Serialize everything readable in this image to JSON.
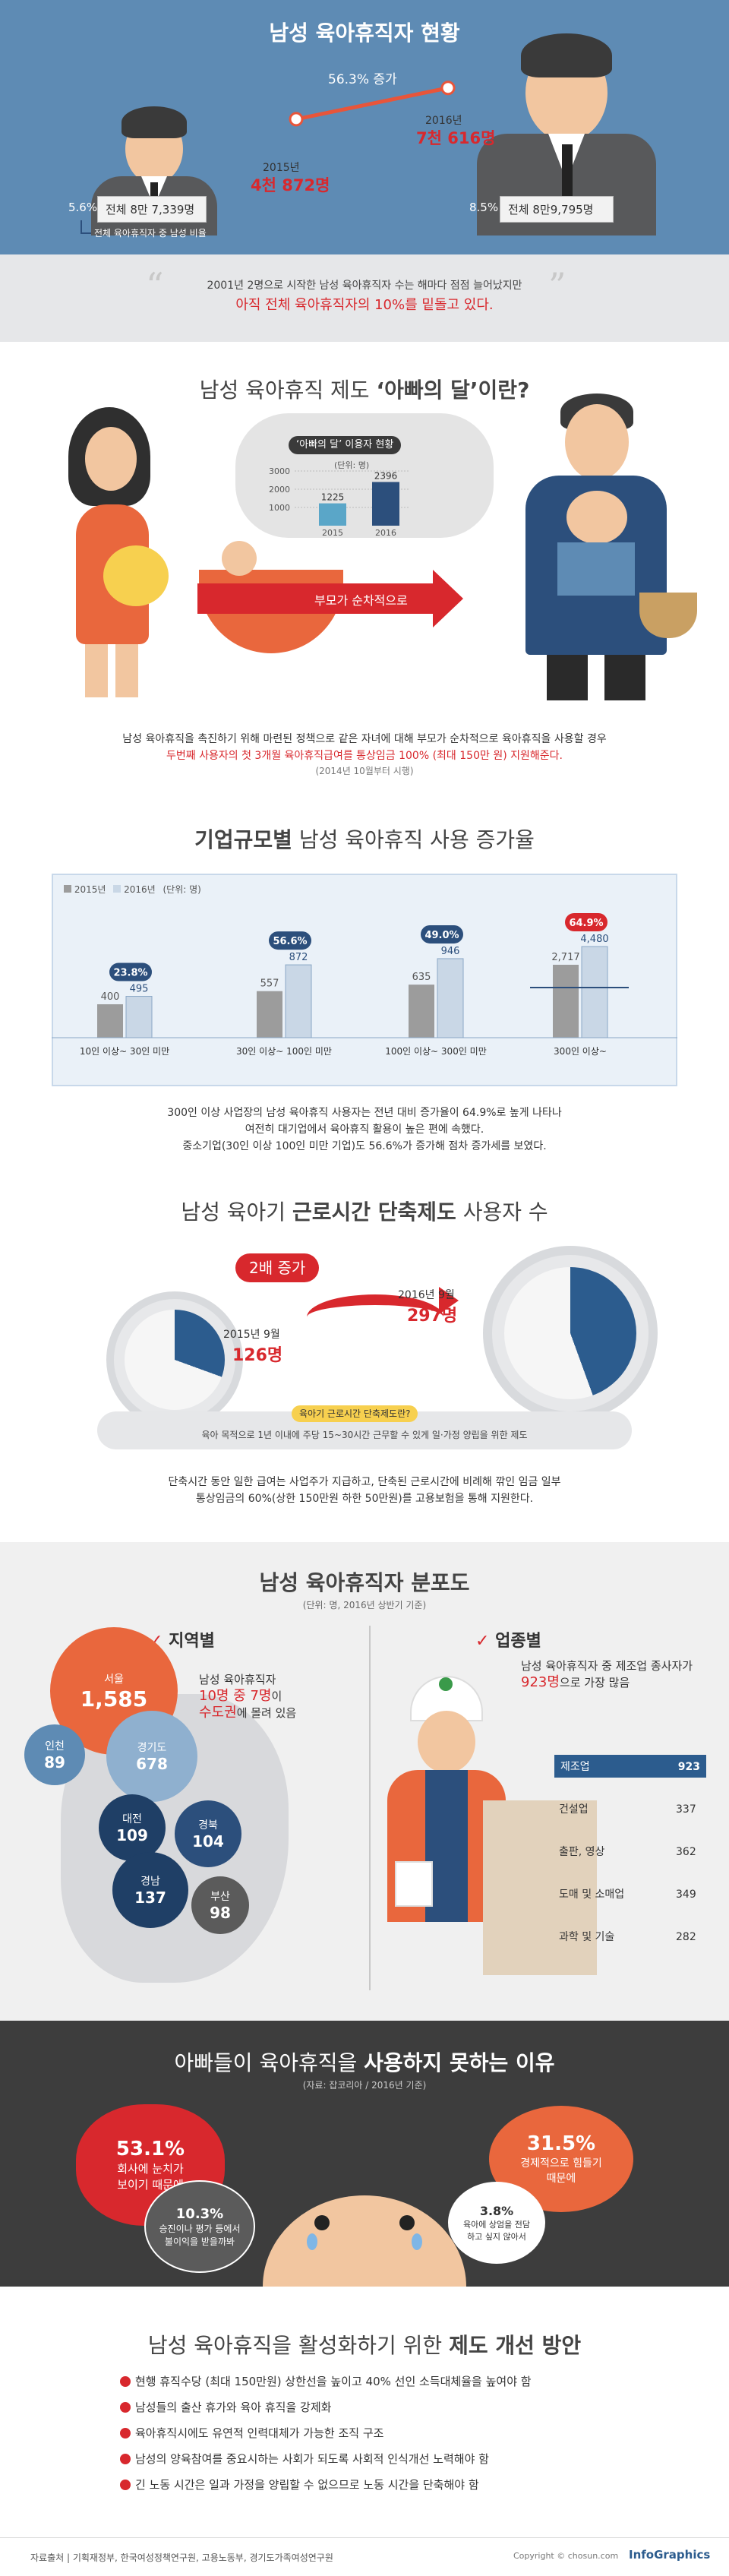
{
  "s1": {
    "title": "남성 육아휴직자 현황",
    "increase_label": "56.3% 증가",
    "y2015_label": "2015년",
    "y2015_value": "4천 872명",
    "y2016_label": "2016년",
    "y2016_value": "7천 616명",
    "left_pct": "5.6%",
    "left_total": "전체 8만 7,339명",
    "right_pct": "8.5%",
    "right_total": "전체 8만9,795명",
    "legend": "전체 육아휴직자 중 남성 비율",
    "quote_line1": "2001년 2명으로 시작한 남성 육아휴직자 수는 해마다 점점 늘어났지만",
    "quote_line2": "아직 전체 육아휴직자의 10%를 밑돌고 있다."
  },
  "s2": {
    "title_prefix": "남성 육아휴직 제도 ",
    "title_highlight": "‘아빠의 달’이란?",
    "chart_title": "‘아빠의 달’ 이용자 현황",
    "unit": "(단위: 명)",
    "arrow_label": "부모가 순차적으로",
    "desc_line1": "남성 육아휴직을 촉진하기 위해 마련된 정책으로 같은 자녀에 대해 부모가 순차적으로 육아휴직을 사용할 경우",
    "desc_line2": "두번째 사용자의 첫 3개월 육아휴직급여를 통상임금 100% (최대 150만 원) 지원해준다.",
    "desc_note": "(2014년 10월부터 시행)"
  },
  "s3": {
    "title_bold": "기업규모별",
    "title_rest": " 남성 육아휴직 사용 증가율",
    "legend_2015": "2015년",
    "legend_2016": "2016년",
    "unit": "(단위: 명)",
    "desc_line1": "300인 이상 사업장의 남성 육아휴직 사용자는 전년 대비 증가율이 64.9%로 높게 나타나",
    "desc_line2": "여전히 대기업에서 육아휴직 활용이 높은 편에 속했다.",
    "desc_line3": "중소기업(30인 이상 100인 미만 기업)도 56.6%가 증가해 점차 증가세를 보였다."
  },
  "s4": {
    "title_prefix": "남성 육아기 ",
    "title_bold": "근로시간 단축제도",
    "title_suffix": " 사용자 수",
    "badge": "2배 증가",
    "y2015_label": "2015년 9월",
    "y2015_value": "126명",
    "y2016_label": "2016년 9월",
    "y2016_value": "297명",
    "pill_title": "육아기 근로시간 단축제도란?",
    "pill_desc": "육아 목적으로 1년 이내에 주당 15~30시간 근무할 수 있게 일·가정 양립을 위한 제도",
    "desc_line1": "단축시간 동안 일한 급여는 사업주가 지급하고, 단축된 근로시간에 비례해 깎인 임금 일부",
    "desc_line2": "통상임금의 60%(상한 150만원 하한 50만원)를 고용보험을 통해 지원한다."
  },
  "s5": {
    "title": "남성 육아휴직자 분포도",
    "unit": "(단위: 명, 2016년 상반기 기준)",
    "region_title": "지역별",
    "industry_title": "업종별",
    "region_note_line1": "남성 육아휴직자",
    "region_note_line2a": "10명 중 7명",
    "region_note_line2b": "이",
    "region_note_line3a": "수도권",
    "region_note_line3b": "에 몰려 있음",
    "industry_note_line1": "남성 육아휴직자 중 제조업 종사자가",
    "industry_note_line2a": "923명",
    "industry_note_line2b": "으로 가장 많음"
  },
  "s6": {
    "title_prefix": "아빠들이 육아휴직을 ",
    "title_bold": "사용하지 못하는 이유",
    "source": "(자료: 잡코리아 / 2016년 기준)",
    "r1_pct": "53.1%",
    "r1_text1": "회사에 눈치가",
    "r1_text2": "보이기 때문에",
    "r2_pct": "10.3%",
    "r2_text1": "승진이나 평가 등에서",
    "r2_text2": "불이익을 받을까봐",
    "r3_pct": "31.5%",
    "r3_text1": "경제적으로 힘들기",
    "r3_text2": "때문에",
    "r4_pct": "3.8%",
    "r4_text1": "육아에 상엄을 전담",
    "r4_text2": "하고 싶지 않아서"
  },
  "s7": {
    "title_prefix": "남성 육아휴직을  활성화하기 위한 ",
    "title_bold": "제도 개선 방안",
    "items": [
      "현행 휴직수당 (최대 150만원) 상한선을 높이고 40% 선인 소득대체율을 높여야 함",
      "남성들의 출산 휴가와 육아 휴직을 강제화",
      "육아휴직시에도 유연적 인력대체가 가능한 조직 구조",
      "남성의 양육참여를 중요시하는 사회가 되도록 사회적 인식개선 노력해야 함",
      "긴 노동 시간은 일과 가정을 양립할 수 없으므로 노동 시간을 단축해야 함"
    ],
    "source": "자료출처 | 기획재정부, 한국여성정책연구원, 고용노동부, 경기도가족여성연구원",
    "copyright": "Copyright © chosun.com",
    "brand": "InfoGraphics"
  },
  "colors": {
    "accent_red": "#d8282d",
    "navy": "#2c4f7c",
    "sky_blue": "#5e8bb4",
    "dark_bg": "#3d3d3d"
  },
  "chart_data": [
    {
      "type": "line",
      "title": "남성 육아휴직자 현황",
      "x": [
        "2015년",
        "2016년"
      ],
      "series": [
        {
          "values": [
            4872,
            7616
          ]
        }
      ],
      "annotations": [
        "56.3% 증가"
      ],
      "share_of_total_pct": [
        5.6,
        8.5
      ],
      "total_leave_takers": [
        87339,
        89795
      ]
    },
    {
      "type": "bar",
      "title": "‘아빠의 달’ 이용자 현황",
      "ylabel": "(단위: 명)",
      "categories": [
        "2015",
        "2016"
      ],
      "values": [
        1225,
        2396
      ],
      "yticks": [
        1000,
        2000,
        3000
      ],
      "ylim": [
        0,
        3000
      ]
    },
    {
      "type": "bar",
      "title": "기업규모별 남성 육아휴직 사용 증가율",
      "categories": [
        "10인 이상~ 30인 미만",
        "30인 이상~ 100인 미만",
        "100인 이상~ 300인 미만",
        "300인 이상~"
      ],
      "series": [
        {
          "name": "2015년",
          "values": [
            400,
            557,
            635,
            2717
          ]
        },
        {
          "name": "2016년",
          "values": [
            495,
            872,
            946,
            4480
          ]
        }
      ],
      "growth_rate_labels": [
        "23.8%",
        "56.6%",
        "49.0%",
        "64.9%"
      ],
      "axis_break": true
    },
    {
      "type": "bar",
      "title": "남성 육아기 근로시간 단축제도 사용자 수",
      "categories": [
        "2015년 9월",
        "2016년 9월"
      ],
      "values": [
        126,
        297
      ],
      "annotations": [
        "2배 증가"
      ]
    },
    {
      "type": "scatter",
      "title": "지역별",
      "categories": [
        "서울",
        "인천",
        "경기도",
        "대전",
        "경북",
        "경남",
        "부산"
      ],
      "values": [
        1585,
        89,
        678,
        109,
        104,
        137,
        98
      ]
    },
    {
      "type": "bar",
      "title": "업종별",
      "categories": [
        "제조업",
        "건설업",
        "출판, 영상",
        "도매 및 소매업",
        "과학 및 기술"
      ],
      "values": [
        923,
        337,
        362,
        349,
        282
      ],
      "data_labels": [
        "923",
        "337",
        "362",
        "349",
        "282"
      ]
    },
    {
      "type": "pie",
      "title": "아빠들이 육아휴직을 사용하지 못하는 이유",
      "categories": [
        "회사에 눈치가 보이기 때문에",
        "경제적으로 힘들기 때문에",
        "승진이나 평가 등에서 불이익을 받을까봐",
        "육아에 상엄을 전담하고 싶지 않아서"
      ],
      "values": [
        53.1,
        31.5,
        10.3,
        3.8
      ]
    }
  ]
}
